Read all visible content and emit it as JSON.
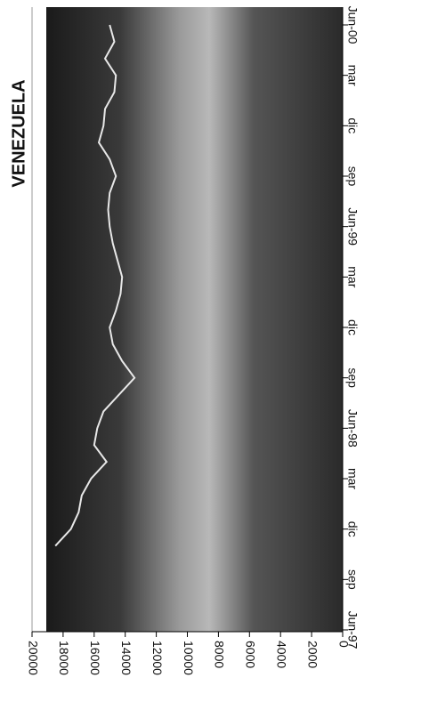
{
  "chart_data": {
    "type": "line",
    "title": "VENEZUELA",
    "categories": [
      "Jun-97",
      null,
      null,
      "sep",
      null,
      null,
      "dic",
      null,
      null,
      "mar",
      null,
      null,
      "Jun-98",
      null,
      null,
      "sep",
      null,
      null,
      "dic",
      null,
      null,
      "mar",
      null,
      null,
      "Jun-99",
      null,
      null,
      "sep",
      null,
      null,
      "dic",
      null,
      null,
      "mar",
      null,
      null,
      "Jun-00"
    ],
    "series": [
      {
        "color": "#e8e8e8",
        "values": [
          null,
          null,
          null,
          null,
          null,
          18500,
          17500,
          17000,
          16800,
          16200,
          15200,
          16000,
          15800,
          15400,
          14400,
          13400,
          14200,
          14800,
          15000,
          14600,
          14300,
          14200,
          14500,
          14800,
          15000,
          15100,
          15000,
          14600,
          15000,
          15700,
          15400,
          15300,
          14700,
          14600,
          15300,
          14700,
          15000
        ]
      }
    ],
    "ylim": [
      0,
      20000
    ],
    "yticks": [
      0,
      2000,
      4000,
      6000,
      8000,
      10000,
      12000,
      14000,
      16000,
      18000,
      20000
    ]
  }
}
